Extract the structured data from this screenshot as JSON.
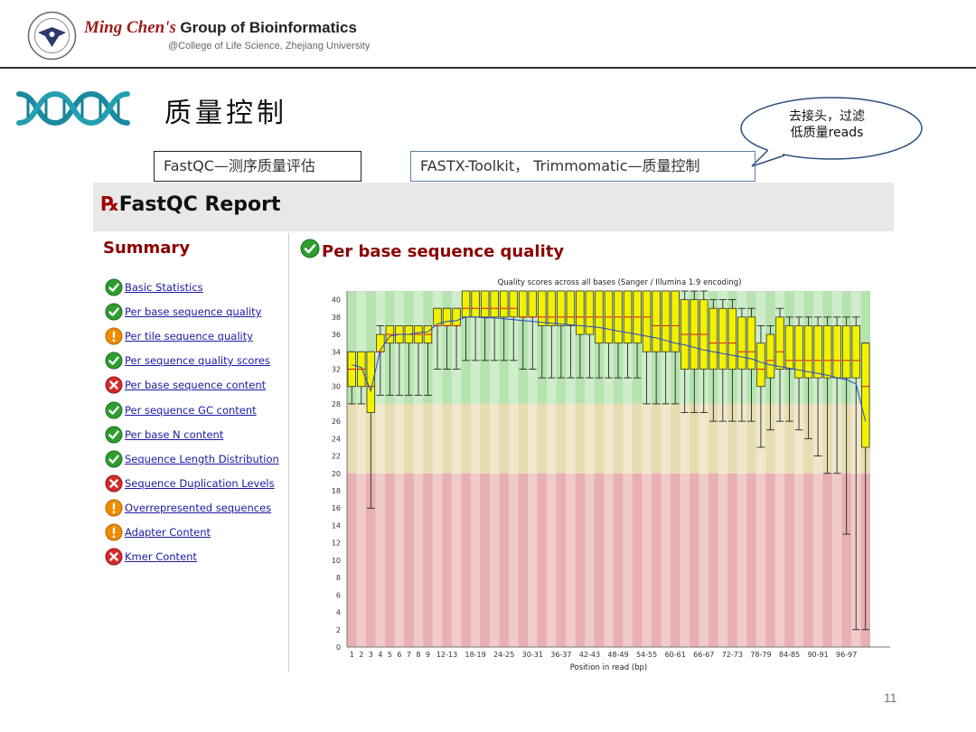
{
  "header": {
    "brand_script": "Ming Chen's",
    "brand_rest": "Group of Bioinformatics",
    "affiliation": "@College of Life Science, Zhejiang University"
  },
  "slide": {
    "title": "质量控制",
    "callout_line1": "去接头，过滤",
    "callout_line2": "低质量reads",
    "tool_fastqc": "FastQC—测序质量评估",
    "tool_fastx": "FASTX-Toolkit， Trimmomatic—质量控制",
    "page_number": "11"
  },
  "report": {
    "title": "FastQC Report",
    "summary_title": "Summary",
    "module_title": "Per base sequence quality",
    "summary_items": [
      {
        "label": "Basic Statistics",
        "status": "pass"
      },
      {
        "label": "Per base sequence quality",
        "status": "pass"
      },
      {
        "label": "Per tile sequence quality",
        "status": "warn"
      },
      {
        "label": "Per sequence quality scores",
        "status": "pass"
      },
      {
        "label": "Per base sequence content",
        "status": "fail"
      },
      {
        "label": "Per sequence GC content",
        "status": "pass"
      },
      {
        "label": "Per base N content",
        "status": "pass"
      },
      {
        "label": "Sequence Length Distribution",
        "status": "pass"
      },
      {
        "label": "Sequence Duplication Levels",
        "status": "fail"
      },
      {
        "label": "Overrepresented sequences",
        "status": "warn"
      },
      {
        "label": "Adapter Content",
        "status": "warn"
      },
      {
        "label": "Kmer Content",
        "status": "fail"
      }
    ]
  },
  "colors": {
    "pass": "#2e9e2e",
    "warn": "#f08c00",
    "fail": "#d42a2a",
    "zone_good": "#b6e3b0",
    "zone_mid": "#e8dcb2",
    "zone_bad": "#e8b0b0",
    "box_fill": "#f2f200",
    "median": "#dd1111",
    "mean_line": "#2244cc"
  },
  "chart_data": {
    "type": "boxplot",
    "title": "Quality scores across all bases (Sanger / Illumina 1.9 encoding)",
    "xlabel": "Position in read (bp)",
    "ylabel": "",
    "ylim": [
      0,
      41
    ],
    "yticks": [
      0,
      2,
      4,
      6,
      8,
      10,
      12,
      14,
      16,
      18,
      20,
      22,
      24,
      26,
      28,
      30,
      32,
      34,
      36,
      38,
      40
    ],
    "zones": [
      {
        "from": 0,
        "to": 20,
        "label": "poor"
      },
      {
        "from": 20,
        "to": 28,
        "label": "reasonable"
      },
      {
        "from": 28,
        "to": 41,
        "label": "good"
      }
    ],
    "categories": [
      "1",
      "2",
      "3",
      "4",
      "5",
      "6",
      "7",
      "8",
      "9",
      "10-11",
      "12-13",
      "14-15",
      "16-17",
      "18-19",
      "20-21",
      "22-23",
      "24-25",
      "26-27",
      "28-29",
      "30-31",
      "32-33",
      "34-35",
      "36-37",
      "38-39",
      "40-41",
      "42-43",
      "44-45",
      "46-47",
      "48-49",
      "50-51",
      "52-53",
      "54-55",
      "56-57",
      "58-59",
      "60-61",
      "62-63",
      "64-65",
      "66-67",
      "68-69",
      "70-71",
      "72-73",
      "74-75",
      "76-77",
      "78-79",
      "80-81",
      "82-83",
      "84-85",
      "86-87",
      "88-89",
      "90-91",
      "92-93",
      "94-95",
      "96-97",
      "98-99",
      "100-101"
    ],
    "x_tick_labels": [
      "1",
      "2",
      "3",
      "4",
      "5",
      "6",
      "7",
      "8",
      "9",
      "12-13",
      "18-19",
      "24-25",
      "30-31",
      "36-37",
      "42-43",
      "48-49",
      "54-55",
      "60-61",
      "66-67",
      "72-73",
      "78-79",
      "84-85",
      "90-91",
      "96-97"
    ],
    "series": [
      {
        "name": "",
        "q1": [
          30,
          30,
          27,
          34,
          35,
          35,
          35,
          35,
          35,
          37,
          37,
          37,
          38,
          38,
          38,
          38,
          38,
          38,
          38,
          38,
          37,
          37,
          37,
          37,
          36,
          36,
          35,
          35,
          35,
          35,
          35,
          34,
          34,
          34,
          34,
          32,
          32,
          32,
          32,
          32,
          32,
          32,
          32,
          30,
          31,
          32,
          32,
          31,
          31,
          31,
          31,
          31,
          31,
          31,
          23
        ],
        "median": [
          32,
          32,
          30,
          34,
          36,
          36,
          36,
          36,
          36,
          37,
          37,
          37,
          39,
          39,
          39,
          39,
          39,
          39,
          38,
          38,
          38,
          38,
          38,
          38,
          38,
          38,
          38,
          38,
          38,
          38,
          38,
          38,
          37,
          37,
          37,
          36,
          36,
          36,
          35,
          35,
          35,
          34,
          34,
          32,
          33,
          34,
          33,
          33,
          33,
          33,
          33,
          33,
          33,
          33,
          30
        ],
        "q3": [
          34,
          34,
          34,
          36,
          37,
          37,
          37,
          37,
          37,
          39,
          39,
          39,
          41,
          41,
          41,
          41,
          41,
          41,
          41,
          41,
          41,
          41,
          41,
          41,
          41,
          41,
          41,
          41,
          41,
          41,
          41,
          41,
          41,
          41,
          41,
          40,
          40,
          40,
          39,
          39,
          39,
          38,
          38,
          35,
          36,
          38,
          37,
          37,
          37,
          37,
          37,
          37,
          37,
          37,
          35
        ],
        "low": [
          28,
          28,
          16,
          29,
          29,
          29,
          29,
          29,
          29,
          32,
          32,
          32,
          33,
          33,
          33,
          33,
          33,
          33,
          32,
          32,
          31,
          31,
          31,
          31,
          31,
          31,
          31,
          31,
          31,
          31,
          31,
          28,
          28,
          28,
          28,
          27,
          27,
          27,
          26,
          26,
          26,
          26,
          26,
          23,
          25,
          26,
          26,
          25,
          24,
          22,
          20,
          20,
          13,
          2,
          2
        ],
        "high": [
          34,
          34,
          34,
          37,
          37,
          37,
          37,
          37,
          37,
          39,
          39,
          39,
          41,
          41,
          41,
          41,
          41,
          41,
          41,
          41,
          41,
          41,
          41,
          41,
          41,
          41,
          41,
          41,
          41,
          41,
          41,
          41,
          41,
          41,
          41,
          41,
          41,
          41,
          40,
          40,
          40,
          39,
          39,
          37,
          37,
          39,
          38,
          38,
          38,
          38,
          38,
          38,
          38,
          38,
          35
        ],
        "mean": [
          32.5,
          32.2,
          29.5,
          34.2,
          35.8,
          36,
          36,
          36.2,
          36.3,
          37.2,
          37.5,
          37.6,
          38,
          38,
          37.9,
          37.9,
          37.8,
          37.7,
          37.6,
          37.5,
          37.4,
          37.3,
          37.2,
          37.1,
          37,
          36.9,
          36.8,
          36.6,
          36.4,
          36.2,
          36,
          35.8,
          35.6,
          35.3,
          35,
          34.8,
          34.5,
          34.2,
          34,
          33.8,
          33.6,
          33.4,
          33.2,
          32.8,
          32.5,
          32.3,
          32.1,
          31.9,
          31.7,
          31.5,
          31.3,
          31,
          30.8,
          30.3,
          26
        ]
      }
    ],
    "grid": false,
    "legend": "none"
  }
}
